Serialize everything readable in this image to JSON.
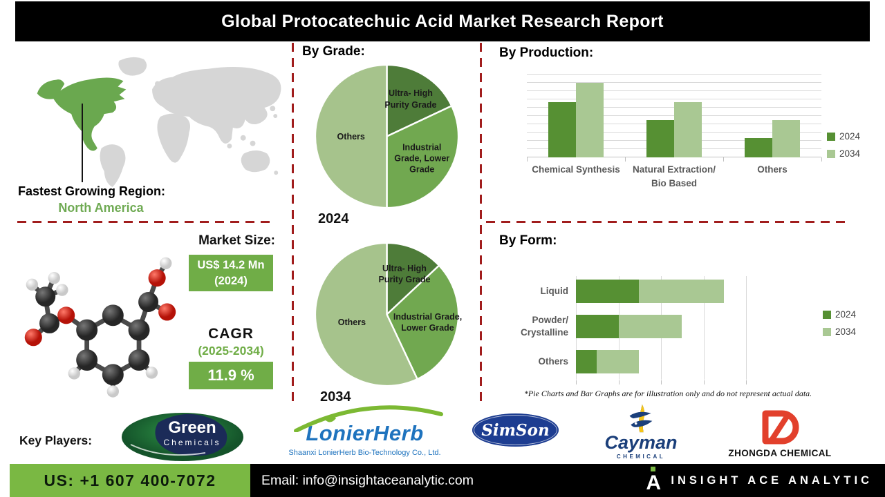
{
  "header": {
    "title": "Global Protocatechuic Acid Market Research Report"
  },
  "region": {
    "label": "Fastest Growing Region:",
    "value": "North America"
  },
  "market_size": {
    "label": "Market Size:",
    "value": "US$ 14.2 Mn",
    "year": "(2024)"
  },
  "cagr": {
    "label": "CAGR",
    "period": "(2025-2034)",
    "value": "11.9 %"
  },
  "disclaimer": "*Pie Charts and Bar Graphs are for illustration only and do not represent actual data.",
  "key_players": {
    "label": "Key Players:",
    "green_chemicals": {
      "line1": "Green",
      "line2": "Chemicals"
    },
    "lonierherb": {
      "name": "LonierHerb",
      "sub": "Shaanxi LonierHerb Bio-Technology Co., Ltd."
    },
    "simson": {
      "name": "SimSon"
    },
    "cayman": {
      "name": "Cayman",
      "sub": "CHEMICAL"
    },
    "zhongda": {
      "name": "ZHONGDA CHEMICAL"
    }
  },
  "footer": {
    "phone": "US: +1 607 400-7072",
    "email": "Email: info@insightaceanalytic.com",
    "brand": "INSIGHT ACE ANALYTIC"
  },
  "colors": {
    "pie_dark_green": "#4e7c39",
    "pie_mid_green": "#71a850",
    "pie_light_green": "#a6c38c",
    "bar_2024_green": "#569033",
    "bar_2034_green": "#a9c893",
    "box_green": "#70ad47",
    "footer_green": "#7ab843",
    "dashed_red": "#a11d1d",
    "map_highlight_green": "#6aa84f",
    "map_gray": "#d6d6d6"
  },
  "chart_data": [
    {
      "type": "pie",
      "id": "grade-2024",
      "title": "By Grade:",
      "year_label": "2024",
      "slices": [
        {
          "label": "Ultra- High Purity Grade",
          "lines": [
            "Ultra- High",
            "Purity Grade"
          ],
          "value": 18,
          "color": "#4e7c39"
        },
        {
          "label": "Industrial Grade, Lower Grade",
          "lines": [
            "Industrial",
            "Grade, Lower",
            "Grade"
          ],
          "value": 32,
          "color": "#71a850"
        },
        {
          "label": "Others",
          "lines": [
            "Others"
          ],
          "value": 50,
          "color": "#a6c38c"
        }
      ],
      "note": "illustrative values (percent)"
    },
    {
      "type": "pie",
      "id": "grade-2034",
      "title": "By Grade:",
      "year_label": "2034",
      "slices": [
        {
          "label": "Ultra- High Purity Grade",
          "lines": [
            "Ultra- High",
            "Purity Grade"
          ],
          "value": 13,
          "color": "#4e7c39"
        },
        {
          "label": "Industrial Grade, Lower Grade",
          "lines": [
            "Industrial Grade,",
            "Lower Grade"
          ],
          "value": 30,
          "color": "#71a850"
        },
        {
          "label": "Others",
          "lines": [
            "Others"
          ],
          "value": 57,
          "color": "#a6c38c"
        }
      ],
      "note": "illustrative values (percent)"
    },
    {
      "type": "bar",
      "id": "production",
      "title": "By  Production:",
      "categories": [
        [
          "Chemical Synthesis"
        ],
        [
          "Natural Extraction/",
          "Bio Based"
        ],
        [
          "Others"
        ]
      ],
      "series": [
        {
          "name": "2024",
          "color": "#569033",
          "values": [
            67,
            45,
            23
          ]
        },
        {
          "name": "2034",
          "color": "#a9c893",
          "values": [
            90,
            67,
            45
          ]
        }
      ],
      "ylim": [
        0,
        100
      ],
      "gridlines": 10,
      "legend_position": "right",
      "note": "illustrative values"
    },
    {
      "type": "stacked-hbar",
      "id": "form",
      "title": "By Form:",
      "categories": [
        [
          "Liquid"
        ],
        [
          "Powder/",
          "Crystalline"
        ],
        [
          "Others"
        ]
      ],
      "series": [
        {
          "name": "2024",
          "color": "#569033",
          "values": [
            37,
            25,
            12
          ]
        },
        {
          "name": "2034",
          "color": "#a9c893",
          "values": [
            50,
            37,
            25
          ]
        }
      ],
      "xlim": [
        0,
        100
      ],
      "gridlines": 4,
      "legend_position": "right",
      "note": "illustrative values"
    }
  ]
}
